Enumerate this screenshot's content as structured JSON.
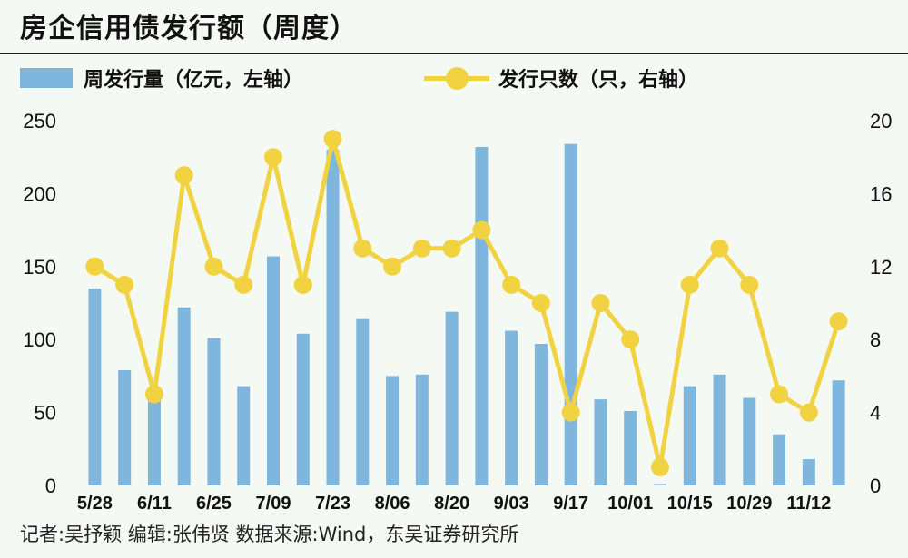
{
  "header": {
    "title": "房企信用债发行额（周度）"
  },
  "footer": {
    "credit": "记者:吴抒颖  编辑:张伟贤  数据来源:Wind，东吴证券研究所"
  },
  "colors": {
    "bar": "#7fb6dd",
    "line": "#f1d342"
  },
  "chart_data": {
    "type": "bar",
    "categories": [
      "5/28",
      "6/04",
      "6/11",
      "6/18",
      "6/25",
      "7/02",
      "7/09",
      "7/16",
      "7/23",
      "7/30",
      "8/06",
      "8/13",
      "8/20",
      "8/27",
      "9/03",
      "9/10",
      "9/17",
      "9/24",
      "10/01",
      "10/08",
      "10/15",
      "10/22",
      "10/29",
      "11/05",
      "11/12",
      "11/19"
    ],
    "x_tick_labels": [
      "5/28",
      "6/11",
      "6/25",
      "7/09",
      "7/23",
      "8/06",
      "8/20",
      "9/03",
      "9/17",
      "10/01",
      "10/15",
      "10/29",
      "11/12"
    ],
    "series": [
      {
        "name": "周发行量（亿元，左轴）",
        "type": "bar",
        "axis": "left",
        "values": [
          135,
          79,
          66,
          122,
          101,
          68,
          157,
          104,
          230,
          114,
          75,
          76,
          119,
          232,
          106,
          97,
          234,
          59,
          51,
          1,
          68,
          76,
          60,
          35,
          18,
          72
        ]
      },
      {
        "name": "发行只数（只，右轴）",
        "type": "line",
        "axis": "right",
        "values": [
          12,
          11,
          5,
          17,
          12,
          11,
          18,
          11,
          19,
          13,
          12,
          13,
          13,
          14,
          11,
          10,
          4,
          10,
          8,
          1,
          11,
          13,
          11,
          5,
          4,
          9
        ]
      }
    ],
    "y_left": {
      "ylim": [
        0,
        250
      ],
      "ticks": [
        "0",
        "50",
        "100",
        "150",
        "200",
        "250"
      ]
    },
    "y_right": {
      "ylim": [
        0,
        20
      ],
      "ticks": [
        "0",
        "4",
        "8",
        "12",
        "16",
        "20"
      ]
    },
    "grid": false,
    "legend": "top"
  }
}
